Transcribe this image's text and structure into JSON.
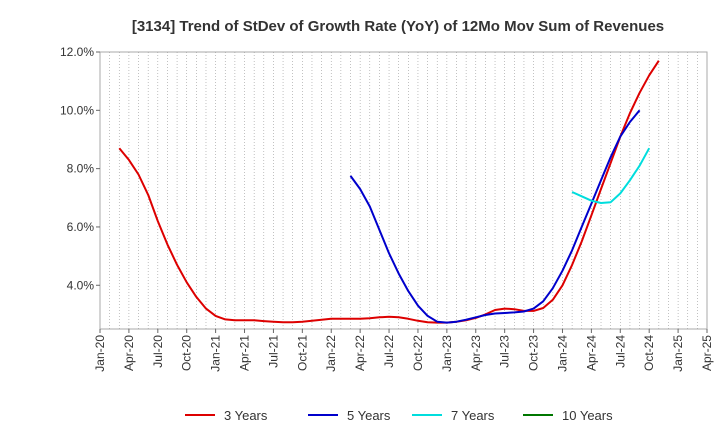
{
  "chart_data": {
    "type": "line",
    "title": "[3134]  Trend of StDev of Growth Rate (YoY) of 12Mo Mov Sum of Revenues",
    "xlabel": "",
    "ylabel": "",
    "ylim": [
      2.5,
      12.0
    ],
    "yticks": [
      4.0,
      6.0,
      8.0,
      10.0,
      12.0
    ],
    "ytick_labels": [
      "4.0%",
      "6.0%",
      "8.0%",
      "10.0%",
      "12.0%"
    ],
    "xlim": [
      0,
      63
    ],
    "xticks": [
      0,
      3,
      6,
      9,
      12,
      15,
      18,
      21,
      24,
      27,
      30,
      33,
      36,
      39,
      42,
      45,
      48,
      51,
      54,
      57,
      60,
      63
    ],
    "xtick_labels": [
      "Jan-20",
      "Apr-20",
      "Jul-20",
      "Oct-20",
      "Jan-21",
      "Apr-21",
      "Jul-21",
      "Oct-21",
      "Jan-22",
      "Apr-22",
      "Jul-22",
      "Oct-22",
      "Jan-23",
      "Apr-23",
      "Jul-23",
      "Oct-23",
      "Jan-24",
      "Apr-24",
      "Jul-24",
      "Oct-24",
      "Jan-25",
      "Apr-25"
    ],
    "grid": "vertical-dotted",
    "legend_position": "bottom",
    "series": [
      {
        "name": "3 Years",
        "color": "#dd0000",
        "x": [
          2,
          3,
          4,
          5,
          6,
          7,
          8,
          9,
          10,
          11,
          12,
          13,
          14,
          15,
          16,
          17,
          18,
          19,
          20,
          21,
          22,
          23,
          24,
          25,
          26,
          27,
          28,
          29,
          30,
          31,
          32,
          33,
          34,
          35,
          36,
          37,
          38,
          39,
          40,
          41,
          42,
          43,
          44,
          45,
          46,
          47,
          48,
          49,
          50,
          51,
          52,
          53,
          54,
          55,
          56,
          57,
          58,
          59,
          60
        ],
        "y": [
          8.7,
          8.3,
          7.8,
          7.1,
          6.2,
          5.4,
          4.7,
          4.1,
          3.6,
          3.2,
          2.95,
          2.83,
          2.8,
          2.8,
          2.8,
          2.77,
          2.75,
          2.73,
          2.73,
          2.75,
          2.78,
          2.82,
          2.85,
          2.85,
          2.85,
          2.85,
          2.87,
          2.9,
          2.92,
          2.9,
          2.85,
          2.78,
          2.73,
          2.72,
          2.72,
          2.75,
          2.8,
          2.88,
          3.0,
          3.15,
          3.2,
          3.18,
          3.12,
          3.12,
          3.22,
          3.5,
          4.0,
          4.7,
          5.5,
          6.4,
          7.3,
          8.2,
          9.1,
          9.9,
          10.6,
          11.2,
          11.7,
          null,
          null
        ]
      },
      {
        "name": "5 Years",
        "color": "#0000cc",
        "x": [
          26,
          27,
          28,
          29,
          30,
          31,
          32,
          33,
          34,
          35,
          36,
          37,
          38,
          39,
          40,
          41,
          42,
          43,
          44,
          45,
          46,
          47,
          48,
          49,
          50,
          51,
          52,
          53,
          54,
          55,
          56,
          57,
          58,
          59,
          60
        ],
        "y": [
          7.75,
          7.3,
          6.7,
          5.9,
          5.1,
          4.4,
          3.8,
          3.3,
          2.95,
          2.75,
          2.72,
          2.75,
          2.82,
          2.9,
          2.98,
          3.03,
          3.05,
          3.07,
          3.1,
          3.2,
          3.45,
          3.9,
          4.5,
          5.2,
          6.0,
          6.8,
          7.6,
          8.4,
          9.1,
          9.6,
          10.0,
          null,
          null,
          null,
          null
        ]
      },
      {
        "name": "7 Years",
        "color": "#00dddd",
        "x": [
          49,
          50,
          51,
          52,
          53,
          54,
          55,
          56,
          57,
          58,
          59,
          60
        ],
        "y": [
          7.2,
          7.05,
          6.9,
          6.82,
          6.85,
          7.15,
          7.6,
          8.1,
          8.7,
          null,
          null,
          null
        ]
      },
      {
        "name": "10 Years",
        "color": "#007700",
        "x": [],
        "y": []
      }
    ]
  }
}
